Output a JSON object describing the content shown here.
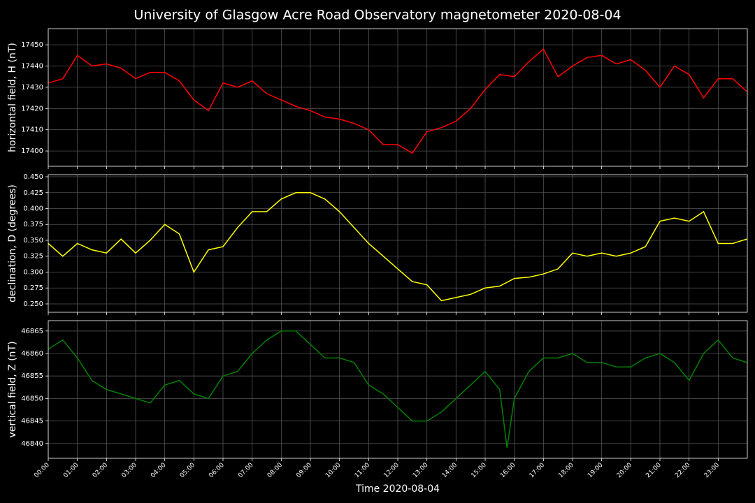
{
  "title": "University of Glasgow Acre Road Observatory magnetometer 2020-08-04",
  "chart_data": [
    {
      "type": "line",
      "ylabel": "horizontal field, H (nT)",
      "color": "#ff0000",
      "grid": true,
      "x": [
        "00:00",
        "00:30",
        "01:00",
        "01:30",
        "02:00",
        "02:30",
        "03:00",
        "03:30",
        "04:00",
        "04:30",
        "05:00",
        "05:30",
        "06:00",
        "06:30",
        "07:00",
        "07:30",
        "08:00",
        "08:30",
        "09:00",
        "09:30",
        "10:00",
        "10:30",
        "11:00",
        "11:30",
        "12:00",
        "12:30",
        "13:00",
        "13:30",
        "14:00",
        "14:30",
        "15:00",
        "15:30",
        "16:00",
        "16:30",
        "17:00",
        "17:30",
        "18:00",
        "18:30",
        "19:00",
        "19:30",
        "20:00",
        "20:30",
        "21:00",
        "21:30",
        "22:00",
        "22:30",
        "23:00",
        "23:30",
        "23:59"
      ],
      "values": [
        17432,
        17434,
        17445,
        17440,
        17441,
        17439,
        17434,
        17437,
        17437,
        17433,
        17424,
        17419,
        17432,
        17430,
        17433,
        17427,
        17424,
        17421,
        17419,
        17416,
        17415,
        17413,
        17410,
        17403,
        17403,
        17399,
        17409,
        17411,
        17414,
        17420,
        17429,
        17436,
        17435,
        17442,
        17448,
        17435,
        17440,
        17444,
        17445,
        17441,
        17443,
        17438,
        17430,
        17440,
        17436,
        17425,
        17434,
        17434,
        17428
      ],
      "ylim": [
        17392.8,
        17457.6
      ],
      "yticks": [
        17400,
        17410,
        17420,
        17430,
        17440,
        17450
      ]
    },
    {
      "type": "line",
      "ylabel": "declination, D (degrees)",
      "color": "#ffff00",
      "grid": true,
      "x": [
        "00:00",
        "00:30",
        "01:00",
        "01:30",
        "02:00",
        "02:30",
        "03:00",
        "03:30",
        "04:00",
        "04:30",
        "05:00",
        "05:30",
        "06:00",
        "06:30",
        "07:00",
        "07:30",
        "08:00",
        "08:30",
        "09:00",
        "09:30",
        "10:00",
        "10:30",
        "11:00",
        "11:30",
        "12:00",
        "12:30",
        "13:00",
        "13:30",
        "14:00",
        "14:30",
        "15:00",
        "15:30",
        "16:00",
        "16:30",
        "17:00",
        "17:30",
        "18:00",
        "18:30",
        "19:00",
        "19:30",
        "20:00",
        "20:30",
        "21:00",
        "21:30",
        "22:00",
        "22:30",
        "23:00",
        "23:30",
        "23:59"
      ],
      "values": [
        0.345,
        0.325,
        0.345,
        0.335,
        0.33,
        0.352,
        0.33,
        0.35,
        0.375,
        0.36,
        0.3,
        0.335,
        0.34,
        0.37,
        0.395,
        0.395,
        0.415,
        0.425,
        0.425,
        0.415,
        0.395,
        0.37,
        0.345,
        0.325,
        0.305,
        0.285,
        0.28,
        0.255,
        0.26,
        0.265,
        0.275,
        0.278,
        0.29,
        0.292,
        0.297,
        0.305,
        0.33,
        0.325,
        0.33,
        0.325,
        0.33,
        0.34,
        0.38,
        0.385,
        0.38,
        0.395,
        0.345,
        0.345,
        0.352
      ],
      "ylim": [
        0.2368,
        0.4533
      ],
      "yticks": [
        {
          "value": 0.25,
          "label": "0.250"
        },
        0.275,
        {
          "value": 0.3,
          "label": "0.300"
        },
        0.325,
        {
          "value": 0.35,
          "label": "0.350"
        },
        0.375,
        {
          "value": 0.4,
          "label": "0.400"
        },
        0.425,
        {
          "value": 0.45,
          "label": "0.450"
        }
      ]
    },
    {
      "type": "line",
      "ylabel": "vertical field, Z (nT)",
      "xlabel": "Time 2020-08-04",
      "color": "#008000",
      "grid": true,
      "x": [
        "00:00",
        "00:30",
        "01:00",
        "01:30",
        "02:00",
        "02:30",
        "03:00",
        "03:30",
        "04:00",
        "04:30",
        "05:00",
        "05:30",
        "06:00",
        "06:30",
        "07:00",
        "07:30",
        "08:00",
        "08:30",
        "09:00",
        "09:30",
        "10:00",
        "10:30",
        "11:00",
        "11:30",
        "12:00",
        "12:30",
        "13:00",
        "13:30",
        "14:00",
        "14:30",
        "15:00",
        "15:30",
        "15:45",
        "16:00",
        "16:30",
        "17:00",
        "17:30",
        "18:00",
        "18:30",
        "19:00",
        "19:30",
        "20:00",
        "20:30",
        "21:00",
        "21:30",
        "22:00",
        "22:30",
        "23:00",
        "23:30",
        "23:59"
      ],
      "values": [
        46861,
        46863,
        46859,
        46854,
        46852,
        46851,
        46850,
        46849,
        46853,
        46854,
        46851,
        46850,
        46855,
        46856,
        46860,
        46863,
        46865,
        46865,
        46862,
        46859,
        46859,
        46858,
        46853,
        46851,
        46848,
        46845,
        46845,
        46847,
        46850,
        46853,
        46856,
        46852,
        46839,
        46850,
        46856,
        46859,
        46859,
        46860,
        46858,
        46858,
        46857,
        46857,
        46859,
        46860,
        46858,
        46854,
        46860,
        46863,
        46859,
        46858
      ],
      "ylim": [
        46836.7,
        46867.3
      ],
      "yticks": [
        46840,
        46845,
        46850,
        46855,
        46860,
        46865
      ],
      "xlim": [
        "00:00",
        "24:00"
      ],
      "xticks": [
        "00:00",
        "01:00",
        "02:00",
        "03:00",
        "04:00",
        "05:00",
        "06:00",
        "07:00",
        "08:00",
        "09:00",
        "10:00",
        "11:00",
        "12:00",
        "13:00",
        "14:00",
        "15:00",
        "16:00",
        "17:00",
        "18:00",
        "19:00",
        "20:00",
        "21:00",
        "22:00",
        "23:00"
      ]
    }
  ]
}
